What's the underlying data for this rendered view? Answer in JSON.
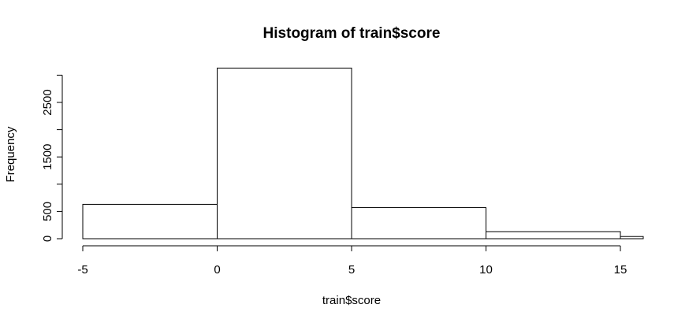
{
  "chart_data": {
    "type": "bar",
    "title": "Histogram of train$score",
    "xlabel": "train$score",
    "ylabel": "Frequency",
    "bins": [
      {
        "start": -5,
        "end": 0,
        "count": 630
      },
      {
        "start": 0,
        "end": 5,
        "count": 3130
      },
      {
        "start": 5,
        "end": 10,
        "count": 570
      },
      {
        "start": 10,
        "end": 15,
        "count": 130
      },
      {
        "start": 15,
        "end": 20,
        "count": 40
      }
    ],
    "xlim": [
      -5,
      15
    ],
    "ylim": [
      0,
      3000
    ],
    "x_ticks": [
      -5,
      0,
      5,
      10,
      15
    ],
    "y_ticks": [
      0,
      500,
      1000,
      1500,
      2000,
      2500,
      3000
    ],
    "y_tick_labels": [
      "0",
      "500",
      "",
      "1500",
      "",
      "2500",
      ""
    ],
    "grid": false,
    "legend": "none",
    "colors": {
      "bar_fill": "#ffffff",
      "bar_stroke": "#000000"
    }
  }
}
